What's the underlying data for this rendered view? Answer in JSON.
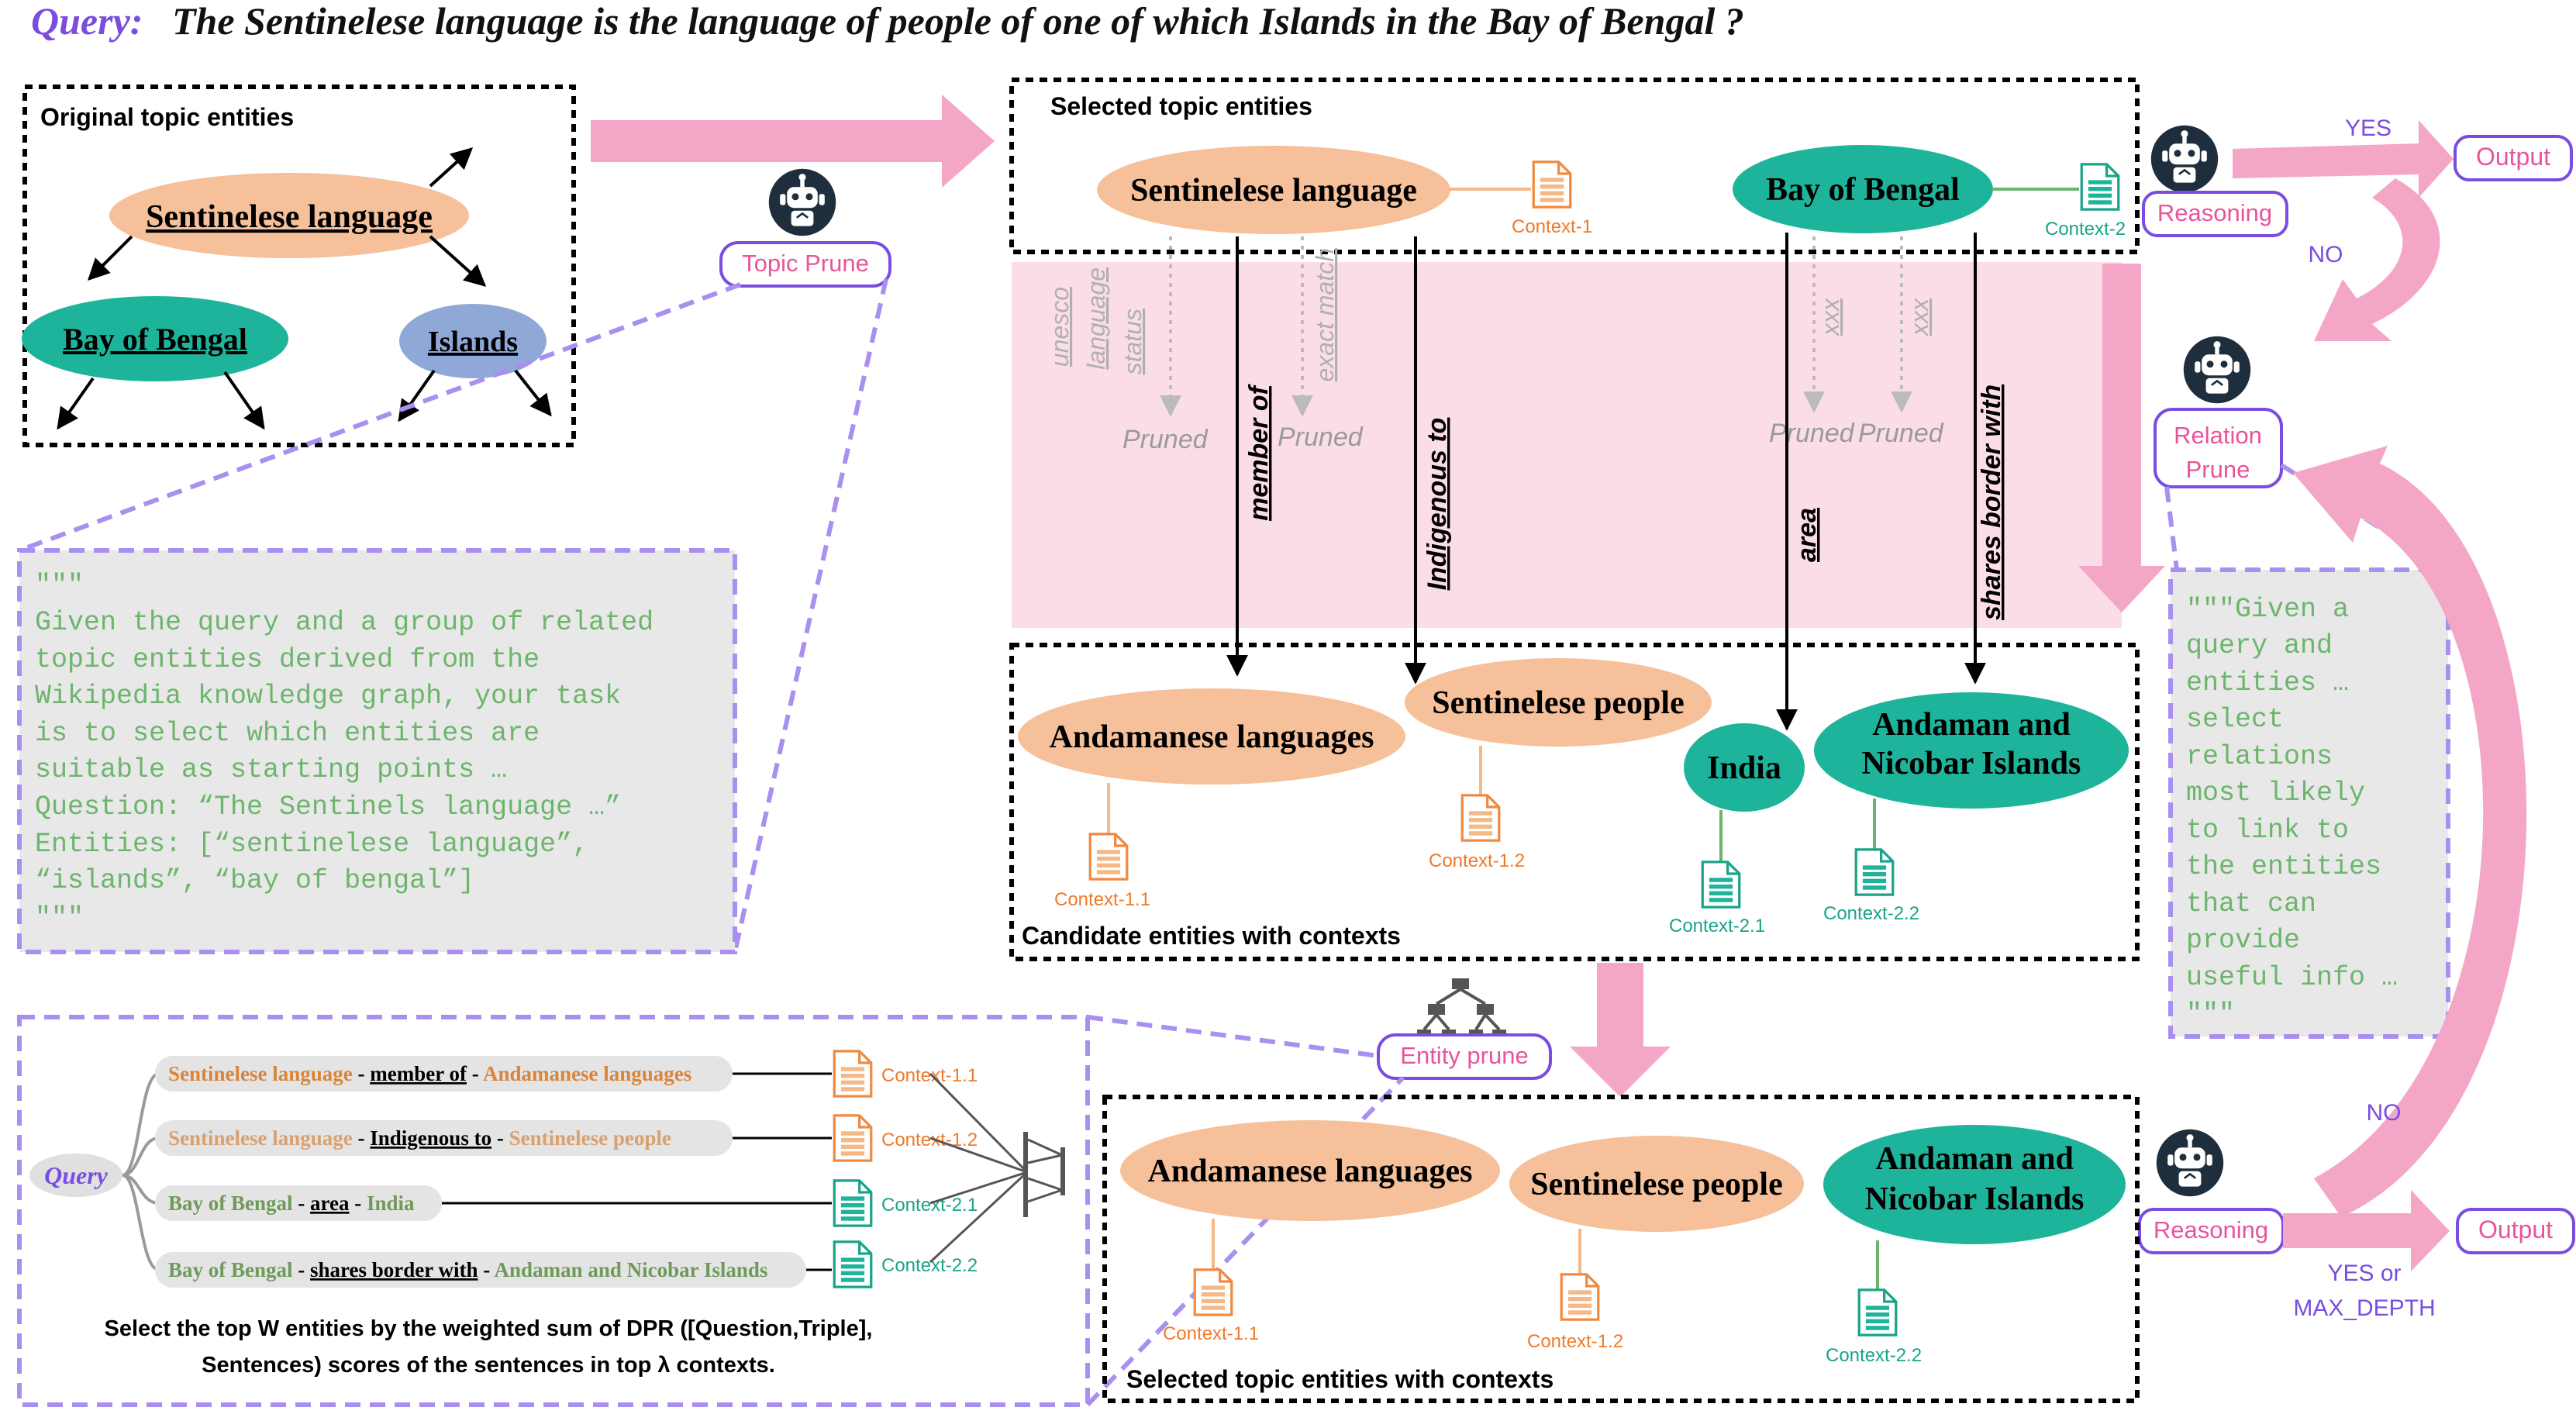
{
  "query": {
    "prefix": "Query:",
    "text": "The Sentinelese language is the language of people of one of which Islands in the Bay of Bengal ?"
  },
  "original": {
    "label": "Original topic entities",
    "entities": [
      "Sentinelese language",
      "Bay of Bengal",
      "Islands"
    ]
  },
  "topic_prune": {
    "label": "Topic Prune",
    "prompt": [
      "\"\"\"",
      "Given the query and a group of related",
      "topic entities derived from the",
      "Wikipedia knowledge graph, your task",
      "is to select which entities are",
      "suitable as starting points …",
      "Question: “The Sentinels language …”",
      "Entities: [“sentinelese language”,",
      "“islands”, “bay of bengal”]",
      "\"\"\""
    ]
  },
  "selected_box": {
    "label": "Selected topic entities",
    "entities": [
      "Sentinelese language",
      "Bay of Bengal"
    ],
    "contexts": [
      "Context-1",
      "Context-2"
    ]
  },
  "pruned_relations": {
    "left": [
      "unesco",
      "language",
      "status"
    ],
    "middle": "exact match",
    "right1": "xxx",
    "right2": "xxx",
    "pruned_label": "Pruned"
  },
  "relations": [
    "member of",
    "Indigenous to",
    "area",
    "shares border with"
  ],
  "candidate_box": {
    "label": "Candidate entities with contexts",
    "entities": [
      "Andamanese languages",
      "Sentinelese people",
      "India",
      "Andaman and",
      "Nicobar Islands"
    ],
    "contexts": [
      "Context-1.1",
      "Context-1.2",
      "Context-2.1",
      "Context-2.2"
    ]
  },
  "reasoning": {
    "label": "Reasoning",
    "yes": "YES",
    "no": "NO",
    "output": "Output",
    "yes_or": "YES or",
    "max_depth": "MAX_DEPTH"
  },
  "relation_prune": {
    "label1": "Relation",
    "label2": "Prune",
    "prompt": [
      "\"\"\"Given a",
      "query and",
      "entities …",
      "select",
      "relations",
      "most likely",
      "to link to",
      "the entities",
      "that can",
      "provide",
      "useful info …",
      "\"\"\""
    ]
  },
  "entity_prune": {
    "label": "Entity prune",
    "query": "Query",
    "triples": [
      {
        "head": "Sentinelese language",
        "rel": "member of",
        "tail": "Andamanese languages",
        "ctx": "Context-1.1"
      },
      {
        "head": "Sentinelese language",
        "rel": "Indigenous to",
        "tail": "Sentinelese people",
        "ctx": "Context-1.2"
      },
      {
        "head": "Bay of Bengal",
        "rel": "area",
        "tail": "India",
        "ctx": "Context-2.1"
      },
      {
        "head": "Bay of Bengal",
        "rel": "shares border with",
        "tail": "Andaman and Nicobar Islands",
        "ctx": "Context-2.2"
      }
    ],
    "sep": "-",
    "caption1": "Select the top W entities by the weighted sum of DPR ([Question,Triple],",
    "caption2": "Sentences) scores of the sentences in top λ contexts."
  },
  "final_box": {
    "label": "Selected topic entities with contexts",
    "entities": [
      "Andamanese languages",
      "Sentinelese people",
      "Andaman and",
      "Nicobar Islands"
    ],
    "contexts": [
      "Context-1.1",
      "Context-1.2",
      "Context-2.2"
    ]
  },
  "colors": {
    "orange": "#f5c09a",
    "teal": "#1eb49b",
    "blue": "#8fa8d8",
    "pink": "#f4a6c6",
    "pink_band": "#fbdde8",
    "purple": "#7a4de0",
    "gray_box": "#e8e8e8",
    "green_text": "#6db56d",
    "ctx_orange": "#f07a2a",
    "ctx_teal": "#1aa38a"
  }
}
